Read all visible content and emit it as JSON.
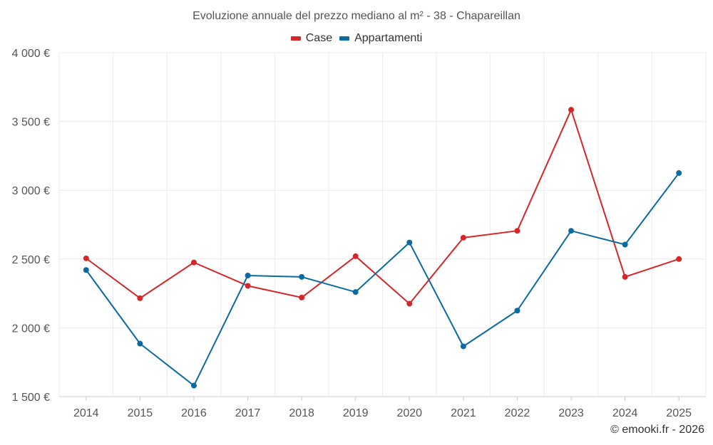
{
  "chart_data": {
    "type": "line",
    "title": "Evoluzione annuale del prezzo mediano al m² - 38 - Chapareillan",
    "xlabel": "",
    "ylabel": "",
    "categories": [
      "2014",
      "2015",
      "2016",
      "2017",
      "2018",
      "2019",
      "2020",
      "2021",
      "2022",
      "2023",
      "2024",
      "2025"
    ],
    "ylim": [
      1500,
      4000
    ],
    "yticks": [
      1500,
      2000,
      2500,
      3000,
      3500,
      4000
    ],
    "ytick_labels": [
      "1 500 €",
      "2 000 €",
      "2 500 €",
      "3 000 €",
      "3 500 €",
      "4 000 €"
    ],
    "grid": true,
    "legend_position": "top-center",
    "series": [
      {
        "name": "Case",
        "color": "#d62728",
        "values": [
          2505,
          2215,
          2475,
          2305,
          2220,
          2520,
          2175,
          2655,
          2705,
          3585,
          2370,
          2500
        ]
      },
      {
        "name": "Appartamenti",
        "color": "#0a6aa1",
        "values": [
          2420,
          1885,
          1580,
          2380,
          2370,
          2260,
          2620,
          1865,
          2125,
          2705,
          2605,
          3125
        ]
      }
    ]
  },
  "credit": "© emooki.fr - 2026"
}
